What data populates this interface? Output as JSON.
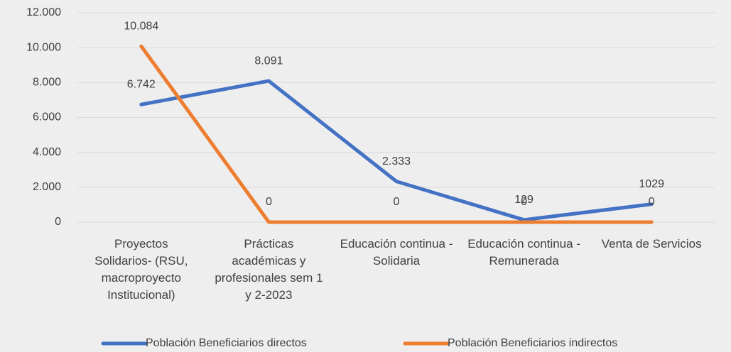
{
  "chart_data": {
    "type": "line",
    "categories": [
      "Proyectos Solidarios- (RSU, macroproyecto Institucional)",
      "Prácticas académicas y profesionales sem 1 y 2-2023",
      "Educación continua - Solidaria",
      "Educación continua - Remunerada",
      "Venta de Servicios"
    ],
    "series": [
      {
        "name": "Población Beneficiarios directos",
        "color": "#4472c4",
        "values": [
          6742,
          8091,
          2333,
          129,
          1029
        ],
        "value_labels": [
          "6.742",
          "8.091",
          "2.333",
          "129",
          "1029"
        ]
      },
      {
        "name": "Población Beneficiarios indirectos",
        "color": "#ed7d31",
        "values": [
          10084,
          0,
          0,
          0,
          0
        ],
        "value_labels": [
          "10.084",
          "0",
          "0",
          "0",
          "0"
        ]
      }
    ],
    "ylim": [
      0,
      12000
    ],
    "yticks": [
      0,
      {
        "value": 2000,
        "label": "2.000"
      },
      {
        "value": 4000,
        "label": "4.000"
      },
      {
        "value": 6000,
        "label": "6.000"
      },
      {
        "value": 8000,
        "label": "8.000"
      },
      {
        "value": 10000,
        "label": "10.000"
      },
      {
        "value": 12000,
        "label": "12.000"
      }
    ],
    "grid": true,
    "legend": "bottom"
  }
}
